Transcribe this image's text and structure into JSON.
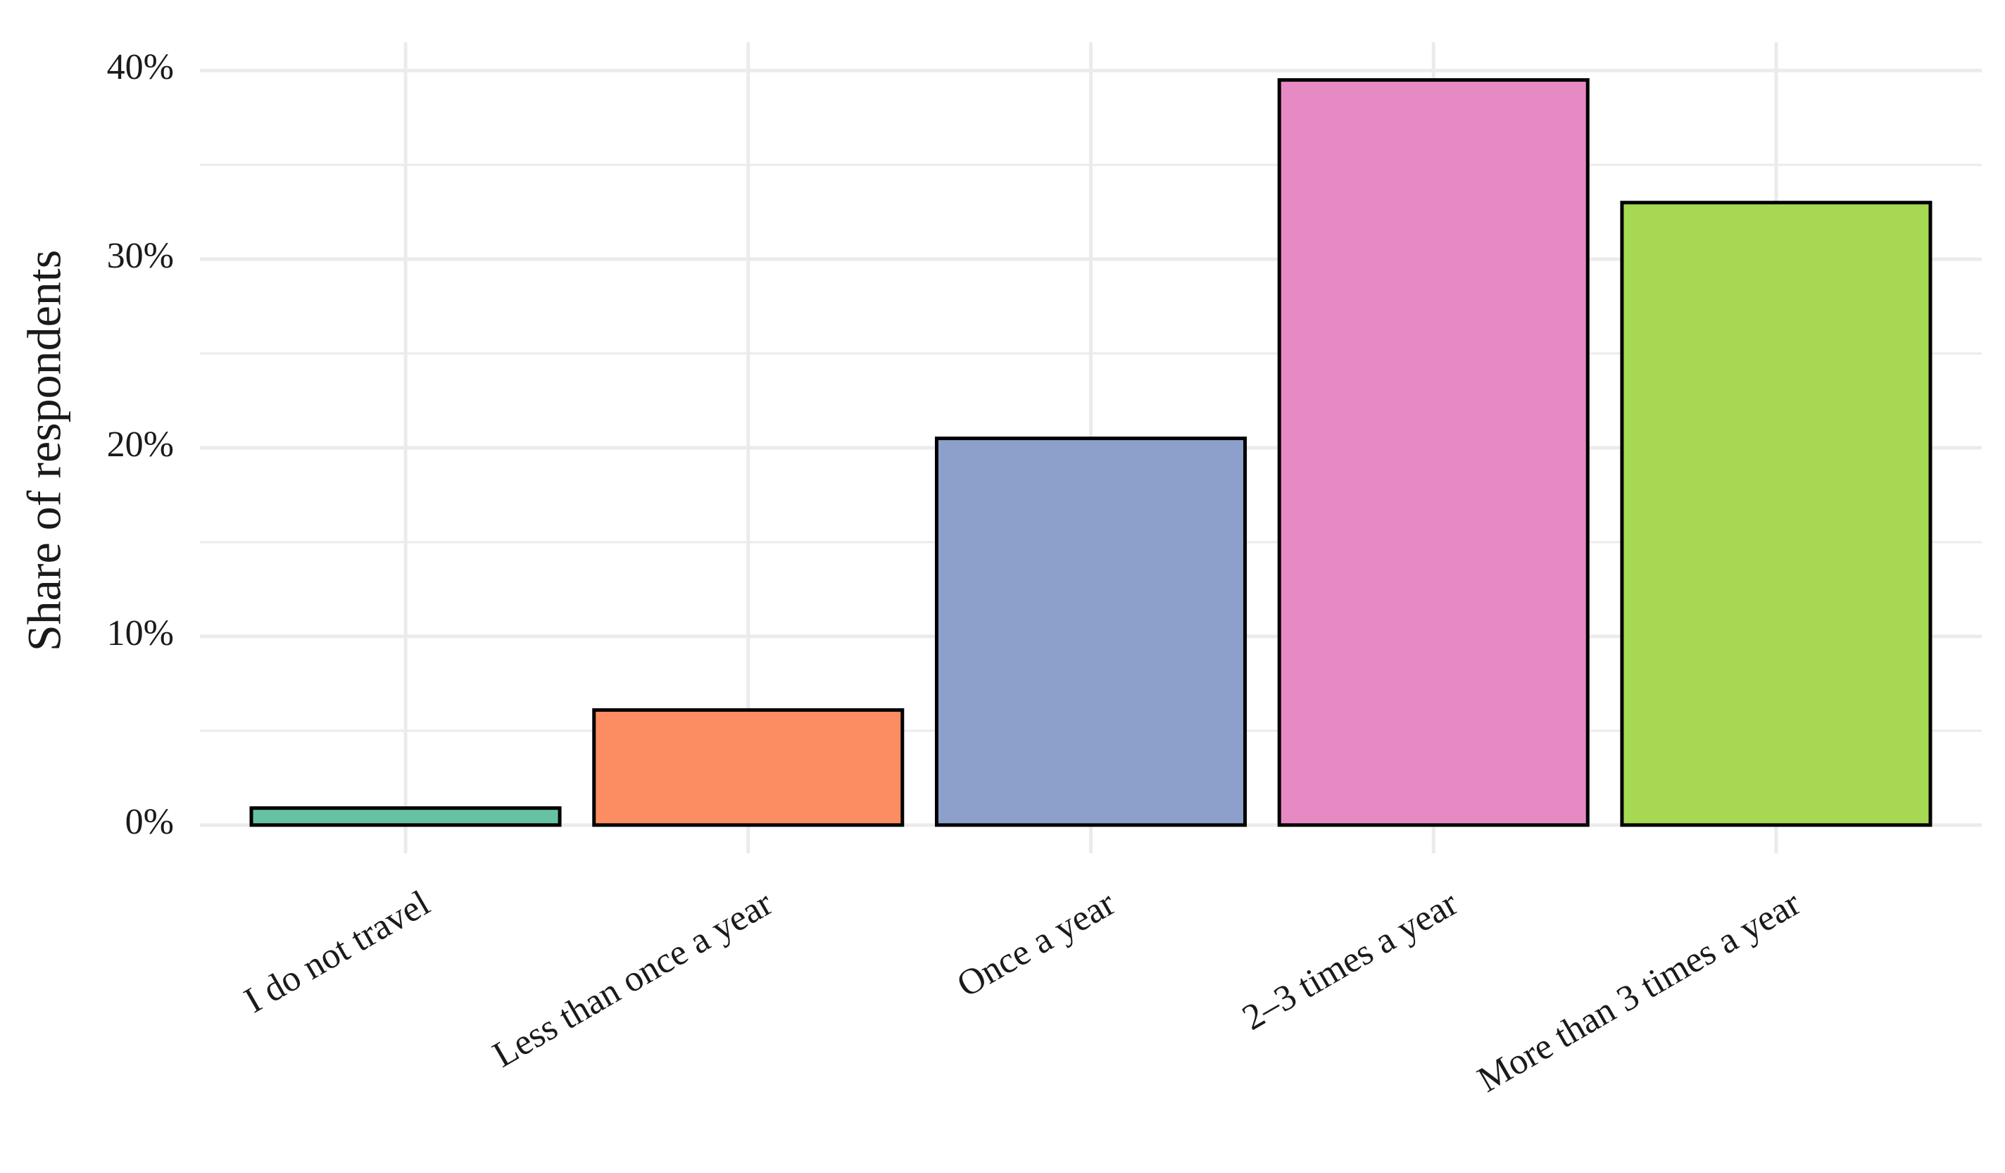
{
  "chart_data": {
    "type": "bar",
    "y_label": "Share of respondents",
    "categories": [
      "I do not travel",
      "Less than once a year",
      "Once a year",
      "2–3 times a year",
      "More than 3 times a year"
    ],
    "values": [
      0.9,
      6.1,
      20.5,
      39.5,
      33.0
    ],
    "colors": [
      "#66c2a5",
      "#fc8d62",
      "#8da0cb",
      "#e78ac3",
      "#a6d854"
    ],
    "ylim": [
      -1.5,
      41.5
    ],
    "yticks": [
      {
        "value": 0,
        "label": "0%"
      },
      {
        "value": 10,
        "label": "10%"
      },
      {
        "value": 20,
        "label": "20%"
      },
      {
        "value": 30,
        "label": "30%"
      },
      {
        "value": 40,
        "label": "40%"
      }
    ],
    "yticks_minor": [
      5,
      15,
      25,
      35
    ],
    "grid": true
  }
}
